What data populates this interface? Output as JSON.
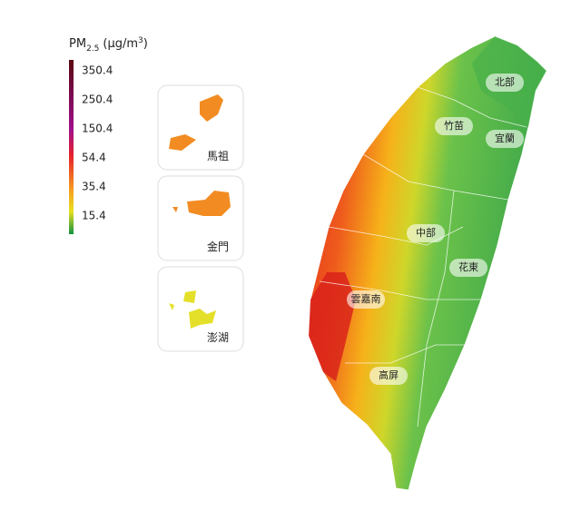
{
  "legend": {
    "title": "PM",
    "title_sub": "2.5",
    "unit": "(μg/m",
    "unit_sup": "3",
    "unit_close": ")",
    "ticks": [
      350.4,
      250.4,
      150.4,
      54.4,
      35.4,
      15.4
    ]
  },
  "regions": [
    "北部",
    "竹苗",
    "宜蘭",
    "中部",
    "花東",
    "雲嘉南",
    "高屏"
  ],
  "insets": [
    "馬祖",
    "金門",
    "澎湖"
  ]
}
